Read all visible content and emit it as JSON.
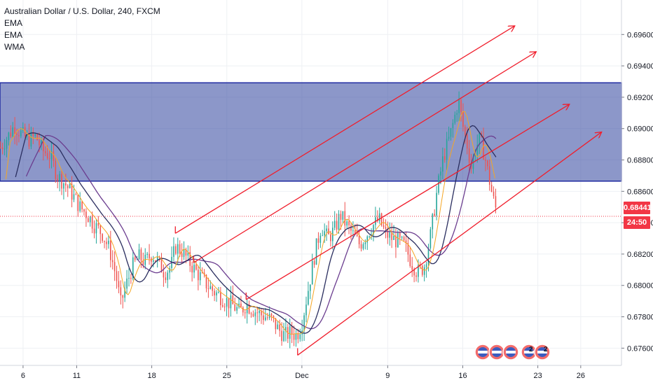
{
  "legend": {
    "title": "Australian Dollar / U.S. Dollar, 240, FXCM",
    "indicators": [
      "EMA",
      "EMA",
      "WMA"
    ]
  },
  "chart_data": {
    "type": "candlestick",
    "symbol": "AUDUSD",
    "timeframe": "240",
    "broker": "FXCM",
    "y_ticks": [
      0.676,
      0.678,
      0.68,
      0.682,
      0.684,
      0.686,
      0.688,
      0.69,
      0.692,
      0.694,
      0.696
    ],
    "y_tick_labels": [
      "0.67600",
      "0.67800",
      "0.68000",
      "0.68200",
      "0.68400",
      "0.68600",
      "0.68800",
      "0.69000",
      "0.69200",
      "0.69400",
      "0.69600"
    ],
    "ylim": [
      0.6749,
      0.6982
    ],
    "x_ticks": [
      {
        "label": "6",
        "day": 6
      },
      {
        "label": "11",
        "day": 11
      },
      {
        "label": "18",
        "day": 18
      },
      {
        "label": "25",
        "day": 25
      },
      {
        "label": "Dec",
        "day": 32
      },
      {
        "label": "9",
        "day": 40
      },
      {
        "label": "16",
        "day": 47
      },
      {
        "label": "23",
        "day": 54
      },
      {
        "label": "26",
        "day": 58
      }
    ],
    "xlim": [
      3.85,
      61.8
    ],
    "last_price": "0.68441",
    "last_price_value": 0.68441,
    "countdown": "24:50",
    "zone": {
      "top": 0.69292,
      "bottom": 0.68665,
      "color": "#3f51a5"
    },
    "channels": [
      {
        "x1": 20.2,
        "y1": 0.68332,
        "x2": 51.8,
        "y2": 0.69653
      },
      {
        "x1": 21.9,
        "y1": 0.68145,
        "x2": 53.8,
        "y2": 0.69488
      },
      {
        "x1": 26.8,
        "y1": 0.6791,
        "x2": 56.9,
        "y2": 0.69153
      },
      {
        "x1": 31.6,
        "y1": 0.67555,
        "x2": 59.9,
        "y2": 0.68976
      }
    ],
    "path": [
      [
        3.9,
        0.6888
      ],
      [
        4.6,
        0.6895
      ],
      [
        5.2,
        0.6902
      ],
      [
        5.9,
        0.6896
      ],
      [
        6.5,
        0.6893
      ],
      [
        7.2,
        0.6895
      ],
      [
        7.8,
        0.6886
      ],
      [
        8.5,
        0.6883
      ],
      [
        9.2,
        0.687
      ],
      [
        9.9,
        0.6865
      ],
      [
        10.6,
        0.6858
      ],
      [
        11.3,
        0.685
      ],
      [
        12.0,
        0.6845
      ],
      [
        12.7,
        0.6838
      ],
      [
        13.4,
        0.6833
      ],
      [
        14.1,
        0.6822
      ],
      [
        14.7,
        0.6805
      ],
      [
        15.1,
        0.6788
      ],
      [
        15.6,
        0.68
      ],
      [
        16.2,
        0.6812
      ],
      [
        16.8,
        0.6818
      ],
      [
        17.4,
        0.6815
      ],
      [
        18.0,
        0.682
      ],
      [
        18.6,
        0.6815
      ],
      [
        19.2,
        0.6808
      ],
      [
        19.8,
        0.6812
      ],
      [
        20.2,
        0.6825
      ],
      [
        20.8,
        0.6822
      ],
      [
        21.4,
        0.6816
      ],
      [
        22.0,
        0.681
      ],
      [
        22.6,
        0.6805
      ],
      [
        23.2,
        0.68
      ],
      [
        23.8,
        0.6796
      ],
      [
        24.4,
        0.6793
      ],
      [
        25.0,
        0.679
      ],
      [
        25.6,
        0.6787
      ],
      [
        26.2,
        0.6783
      ],
      [
        26.8,
        0.6788
      ],
      [
        27.4,
        0.6785
      ],
      [
        28.0,
        0.6782
      ],
      [
        28.6,
        0.678
      ],
      [
        29.2,
        0.6778
      ],
      [
        29.8,
        0.6772
      ],
      [
        30.4,
        0.6768
      ],
      [
        31.0,
        0.677
      ],
      [
        31.5,
        0.6768
      ],
      [
        32.0,
        0.6776
      ],
      [
        32.6,
        0.6798
      ],
      [
        33.2,
        0.682
      ],
      [
        33.8,
        0.6838
      ],
      [
        34.4,
        0.683
      ],
      [
        35.0,
        0.6835
      ],
      [
        35.6,
        0.6845
      ],
      [
        36.2,
        0.6838
      ],
      [
        36.8,
        0.6832
      ],
      [
        37.4,
        0.6826
      ],
      [
        38.0,
        0.6832
      ],
      [
        38.6,
        0.6838
      ],
      [
        39.2,
        0.6842
      ],
      [
        39.8,
        0.6833
      ],
      [
        40.4,
        0.683
      ],
      [
        41.0,
        0.6828
      ],
      [
        41.6,
        0.6825
      ],
      [
        42.2,
        0.6815
      ],
      [
        42.8,
        0.6808
      ],
      [
        43.4,
        0.6812
      ],
      [
        44.0,
        0.6832
      ],
      [
        44.6,
        0.686
      ],
      [
        45.2,
        0.6882
      ],
      [
        45.8,
        0.6895
      ],
      [
        46.2,
        0.6906
      ],
      [
        46.6,
        0.6918
      ],
      [
        47.0,
        0.6902
      ],
      [
        47.4,
        0.689
      ],
      [
        47.8,
        0.6875
      ],
      [
        48.2,
        0.6888
      ],
      [
        48.6,
        0.6893
      ],
      [
        49.0,
        0.6884
      ],
      [
        49.4,
        0.687
      ],
      [
        49.8,
        0.6856
      ],
      [
        50.2,
        0.6846
      ]
    ],
    "ema_fast": {
      "color": "#f5a623",
      "lag": 0.5
    },
    "ema_mid": {
      "color": "#2a2e5f",
      "lag": 1.4
    },
    "wma": {
      "color": "#6b3d8f",
      "lag": 2.4
    },
    "bull_color": "#26a69a",
    "bear_color": "#ef5350",
    "events_label": [
      "2",
      "6",
      "2",
      "2"
    ]
  }
}
